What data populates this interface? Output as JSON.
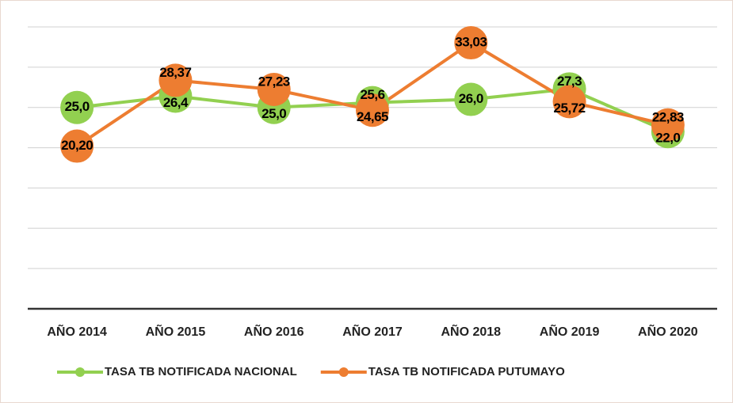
{
  "chart_data": {
    "type": "line",
    "categories": [
      "AÑO 2014",
      "AÑO 2015",
      "AÑO 2016",
      "AÑO 2017",
      "AÑO 2018",
      "AÑO 2019",
      "AÑO 2020"
    ],
    "series": [
      {
        "name": "TASA TB NOTIFICADA NACIONAL",
        "color": "#92d050",
        "values": [
          25.0,
          26.4,
          25.0,
          25.6,
          26.0,
          27.3,
          22.0
        ],
        "value_labels": [
          "25,0",
          "26,4",
          "25,0",
          "25,6",
          "26,0",
          "27,3",
          "22,0"
        ]
      },
      {
        "name": "TASA TB NOTIFICADA PUTUMAYO",
        "color": "#ed7d31",
        "values": [
          20.2,
          28.37,
          27.23,
          24.65,
          33.03,
          25.72,
          22.83
        ],
        "value_labels": [
          "20,20",
          "28,37",
          "27,23",
          "24,65",
          "33,03",
          "25,72",
          "22,83"
        ]
      }
    ],
    "ylim": [
      0,
      35
    ],
    "yticks": [
      0,
      5,
      10,
      15,
      20,
      25,
      30,
      35
    ],
    "grid": true,
    "legend": "bottom"
  }
}
